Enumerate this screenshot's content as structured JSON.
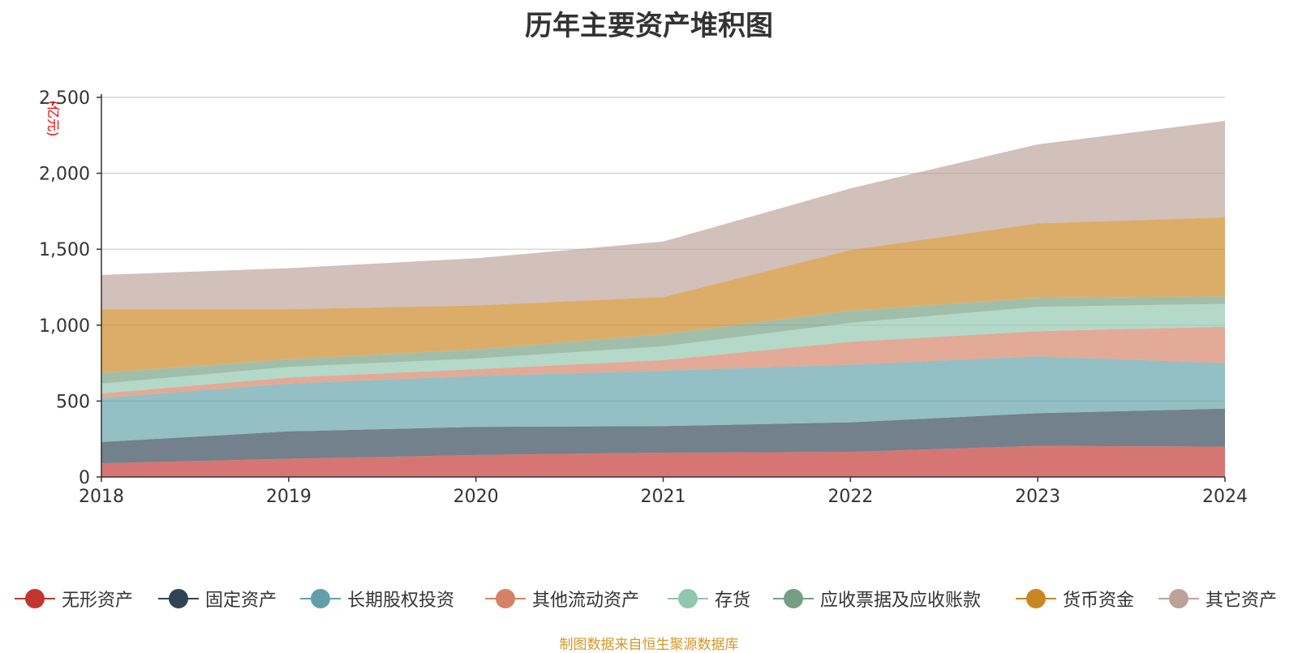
{
  "chart_data": {
    "type": "area",
    "stacked": true,
    "title": "历年主要资产堆积图",
    "ylabel": "亿元",
    "ylim": [
      0,
      2500
    ],
    "yticks": [
      "0",
      "500",
      "1,000",
      "1,500",
      "2,000",
      "2,500"
    ],
    "yticks_values": [
      0,
      500,
      1000,
      1500,
      2000,
      2500
    ],
    "categories": [
      "2018",
      "2019",
      "2020",
      "2021",
      "2022",
      "2023",
      "2024"
    ],
    "grid": true,
    "legend_position": "bottom",
    "series": [
      {
        "name": "无形资产",
        "color": "#c23531",
        "values": [
          90,
          120,
          145,
          160,
          165,
          205,
          200
        ]
      },
      {
        "name": "固定资产",
        "color": "#2f4554",
        "values": [
          140,
          180,
          185,
          175,
          195,
          215,
          250
        ]
      },
      {
        "name": "长期股权投资",
        "color": "#61a0a8",
        "values": [
          290,
          315,
          335,
          365,
          380,
          375,
          300
        ]
      },
      {
        "name": "其他流动资产",
        "color": "#d48265",
        "values": [
          30,
          40,
          45,
          70,
          150,
          165,
          240
        ]
      },
      {
        "name": "存货",
        "color": "#91c7ae",
        "values": [
          65,
          70,
          70,
          90,
          125,
          160,
          150
        ]
      },
      {
        "name": "应收票据及应收账款",
        "color": "#749f83",
        "values": [
          70,
          50,
          60,
          80,
          80,
          60,
          50
        ]
      },
      {
        "name": "货币资金",
        "color": "#ca8622",
        "values": [
          420,
          330,
          290,
          245,
          400,
          490,
          520
        ]
      },
      {
        "name": "其它资产",
        "color": "#bda29a",
        "values": [
          225,
          270,
          310,
          365,
          405,
          520,
          635
        ]
      }
    ]
  },
  "footer": "制图数据来自恒生聚源数据库"
}
